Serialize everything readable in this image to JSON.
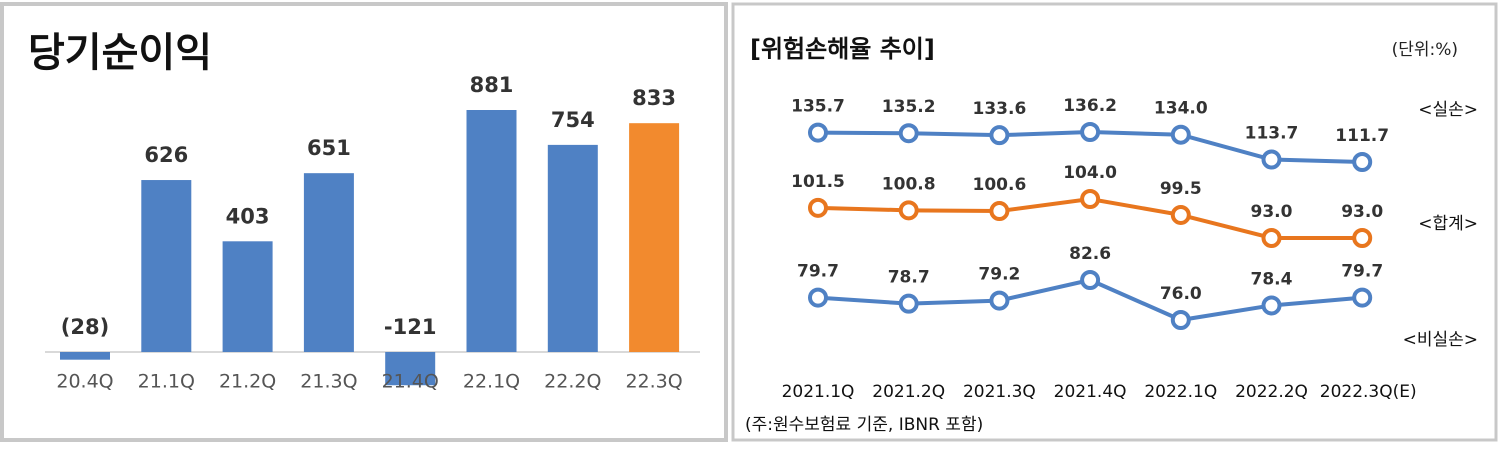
{
  "chart_data": [
    {
      "type": "bar",
      "title": "당기순이익",
      "categories": [
        "20.4Q",
        "21.1Q",
        "21.2Q",
        "21.3Q",
        "21.4Q",
        "22.1Q",
        "22.2Q",
        "22.3Q"
      ],
      "values": [
        -28,
        626,
        403,
        651,
        -121,
        881,
        754,
        833
      ],
      "value_labels": [
        "(28)",
        "626",
        "403",
        "651",
        "-121",
        "881",
        "754",
        "833"
      ],
      "colors": [
        "#4f81c4",
        "#4f81c4",
        "#4f81c4",
        "#4f81c4",
        "#4f81c4",
        "#4f81c4",
        "#4f81c4",
        "#f28a2e"
      ]
    },
    {
      "type": "line",
      "title": "[위험손해율 추이]",
      "subtitle": "(단위:%)",
      "categories": [
        "2021.1Q",
        "2021.2Q",
        "2021.3Q",
        "2021.4Q",
        "2022.1Q",
        "2022.2Q",
        "2022.3Q(E)"
      ],
      "series": [
        {
          "name": "<실손>",
          "color": "#4f81c4",
          "values": [
            135.7,
            135.2,
            133.6,
            136.2,
            134.0,
            113.7,
            111.7
          ],
          "value_labels": [
            "135.7",
            "135.2",
            "133.6",
            "136.2",
            "134.0",
            "113.7",
            "111.7"
          ]
        },
        {
          "name": "<합계>",
          "color": "#e8761e",
          "values": [
            101.5,
            100.8,
            100.6,
            104.0,
            99.5,
            93.0,
            93.0
          ],
          "value_labels": [
            "101.5",
            "100.8",
            "100.6",
            "104.0",
            "99.5",
            "93.0",
            "93.0"
          ]
        },
        {
          "name": "<비실손>",
          "color": "#4f81c4",
          "values": [
            79.7,
            78.7,
            79.2,
            82.6,
            76.0,
            78.4,
            79.7
          ],
          "value_labels": [
            "79.7",
            "78.7",
            "79.2",
            "82.6",
            "76.0",
            "78.4",
            "79.7"
          ]
        }
      ],
      "note": "(주:원수보험료 기준, IBNR 포함)"
    }
  ]
}
